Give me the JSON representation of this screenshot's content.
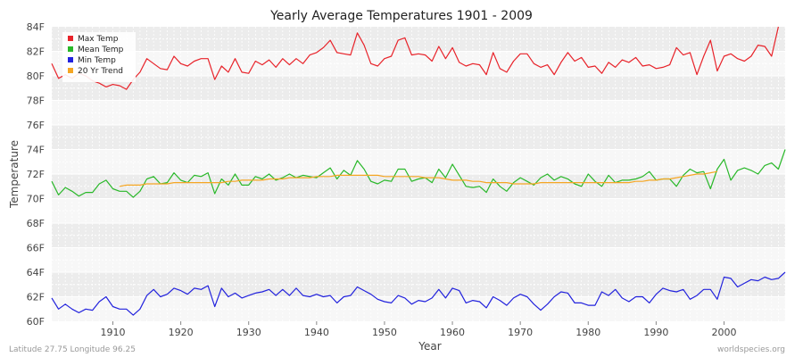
{
  "chart_data": {
    "type": "line",
    "title": "Yearly Average Temperatures 1901 - 2009",
    "xlabel": "Year",
    "ylabel": "Temperature",
    "xlim": [
      1901,
      2009
    ],
    "ylim": [
      60,
      84
    ],
    "x_ticks": [
      1910,
      1920,
      1930,
      1940,
      1950,
      1960,
      1970,
      1980,
      1990,
      2000
    ],
    "y_ticks": [
      {
        "value": 60,
        "label": "60F"
      },
      {
        "value": 62,
        "label": "62F"
      },
      {
        "value": 64,
        "label": "64F"
      },
      {
        "value": 66,
        "label": "66F"
      },
      {
        "value": 68,
        "label": "68F"
      },
      {
        "value": 70,
        "label": "70F"
      },
      {
        "value": 72,
        "label": "72F"
      },
      {
        "value": 74,
        "label": "74F"
      },
      {
        "value": 76,
        "label": "76F"
      },
      {
        "value": 78,
        "label": "78F"
      },
      {
        "value": 80,
        "label": "80F"
      },
      {
        "value": 82,
        "label": "82F"
      },
      {
        "value": 84,
        "label": "84F"
      }
    ],
    "grid": true,
    "legend_position": "top-left",
    "footer_left": "Latitude 27.75 Longitude 96.25",
    "footer_right": "worldspecies.org",
    "series": [
      {
        "name": "Max Temp",
        "color": "#e8232a",
        "x_start": 1901,
        "values": [
          81.0,
          79.8,
          80.1,
          79.8,
          80.2,
          80.0,
          79.6,
          79.4,
          79.1,
          79.3,
          79.2,
          78.9,
          79.7,
          80.3,
          81.4,
          81.0,
          80.6,
          80.5,
          81.6,
          81.0,
          80.8,
          81.2,
          81.4,
          81.4,
          79.7,
          80.8,
          80.3,
          81.4,
          80.3,
          80.2,
          81.2,
          80.9,
          81.3,
          80.7,
          81.4,
          80.9,
          81.4,
          81.0,
          81.7,
          81.9,
          82.3,
          82.9,
          81.9,
          81.8,
          81.7,
          83.5,
          82.5,
          81.0,
          80.8,
          81.4,
          81.6,
          82.9,
          83.1,
          81.7,
          81.8,
          81.7,
          81.2,
          82.4,
          81.4,
          82.3,
          81.1,
          80.8,
          81.0,
          80.9,
          80.1,
          81.9,
          80.6,
          80.3,
          81.2,
          81.8,
          81.8,
          81.0,
          80.7,
          80.9,
          80.1,
          81.1,
          81.9,
          81.2,
          81.5,
          80.7,
          80.8,
          80.2,
          81.1,
          80.7,
          81.3,
          81.1,
          81.5,
          80.8,
          80.9,
          80.6,
          80.7,
          80.9,
          82.3,
          81.7,
          81.9,
          80.1,
          81.6,
          82.9,
          80.4,
          81.6,
          81.8,
          81.4,
          81.2,
          81.6,
          82.5,
          82.4,
          81.6,
          84.0
        ]
      },
      {
        "name": "Mean Temp",
        "color": "#29b829",
        "x_start": 1901,
        "values": [
          71.4,
          70.3,
          70.9,
          70.6,
          70.2,
          70.5,
          70.5,
          71.2,
          71.5,
          70.8,
          70.6,
          70.6,
          70.1,
          70.6,
          71.6,
          71.8,
          71.2,
          71.3,
          72.1,
          71.5,
          71.3,
          71.9,
          71.8,
          72.1,
          70.4,
          71.6,
          71.1,
          72.0,
          71.1,
          71.1,
          71.8,
          71.6,
          72.0,
          71.5,
          71.7,
          72.0,
          71.7,
          71.9,
          71.8,
          71.7,
          72.1,
          72.5,
          71.6,
          72.3,
          71.9,
          73.1,
          72.4,
          71.4,
          71.2,
          71.5,
          71.4,
          72.4,
          72.4,
          71.4,
          71.6,
          71.7,
          71.3,
          72.4,
          71.7,
          72.8,
          71.9,
          71.0,
          70.9,
          71.0,
          70.5,
          71.6,
          71.0,
          70.6,
          71.3,
          71.7,
          71.4,
          71.1,
          71.7,
          72.0,
          71.5,
          71.8,
          71.6,
          71.2,
          71.0,
          72.0,
          71.4,
          71.0,
          71.9,
          71.3,
          71.5,
          71.5,
          71.6,
          71.8,
          72.2,
          71.5,
          71.6,
          71.6,
          71.0,
          71.9,
          72.4,
          72.1,
          72.2,
          70.8,
          72.4,
          73.2,
          71.5,
          72.3,
          72.5,
          72.3,
          72.0,
          72.7,
          72.9,
          72.4,
          74.0
        ]
      },
      {
        "name": "Min Temp",
        "color": "#2222dd",
        "x_start": 1901,
        "values": [
          61.9,
          61.0,
          61.4,
          61.0,
          60.7,
          61.0,
          60.9,
          61.6,
          62.0,
          61.2,
          61.0,
          61.0,
          60.5,
          61.0,
          62.1,
          62.6,
          62.0,
          62.2,
          62.7,
          62.5,
          62.2,
          62.7,
          62.6,
          62.9,
          61.2,
          62.7,
          62.0,
          62.3,
          61.9,
          62.1,
          62.3,
          62.4,
          62.6,
          62.1,
          62.6,
          62.1,
          62.7,
          62.1,
          62.0,
          62.2,
          62.0,
          62.1,
          61.5,
          62.0,
          62.1,
          62.8,
          62.5,
          62.2,
          61.8,
          61.6,
          61.5,
          62.1,
          61.9,
          61.4,
          61.7,
          61.6,
          61.9,
          62.6,
          61.9,
          62.7,
          62.5,
          61.5,
          61.7,
          61.6,
          61.1,
          62.0,
          61.7,
          61.3,
          61.9,
          62.2,
          62.0,
          61.4,
          60.9,
          61.4,
          62.0,
          62.4,
          62.3,
          61.5,
          61.5,
          61.3,
          61.3,
          62.4,
          62.1,
          62.6,
          61.9,
          61.6,
          62.0,
          62.0,
          61.5,
          62.2,
          62.7,
          62.5,
          62.4,
          62.6,
          61.8,
          62.1,
          62.6,
          62.6,
          61.8,
          63.6,
          63.5,
          62.8,
          63.1,
          63.4,
          63.3,
          63.6,
          63.4,
          63.5,
          64.0
        ]
      },
      {
        "name": "20 Yr Trend",
        "color": "#f5a623",
        "x_start": 1911,
        "values": [
          71.0,
          71.1,
          71.1,
          71.1,
          71.2,
          71.2,
          71.2,
          71.2,
          71.3,
          71.3,
          71.3,
          71.3,
          71.3,
          71.3,
          71.3,
          71.3,
          71.4,
          71.4,
          71.5,
          71.5,
          71.5,
          71.5,
          71.6,
          71.6,
          71.6,
          71.7,
          71.7,
          71.7,
          71.7,
          71.8,
          71.8,
          71.8,
          71.9,
          71.9,
          71.9,
          71.9,
          71.9,
          71.9,
          71.9,
          71.8,
          71.8,
          71.8,
          71.8,
          71.8,
          71.8,
          71.7,
          71.7,
          71.7,
          71.6,
          71.5,
          71.5,
          71.5,
          71.4,
          71.4,
          71.3,
          71.3,
          71.3,
          71.3,
          71.2,
          71.2,
          71.2,
          71.2,
          71.3,
          71.3,
          71.3,
          71.3,
          71.3,
          71.3,
          71.3,
          71.3,
          71.3,
          71.3,
          71.3,
          71.3,
          71.3,
          71.3,
          71.4,
          71.4,
          71.5,
          71.5,
          71.6,
          71.6,
          71.7,
          71.8,
          71.9,
          72.0,
          72.0,
          72.1,
          72.2
        ]
      }
    ]
  }
}
